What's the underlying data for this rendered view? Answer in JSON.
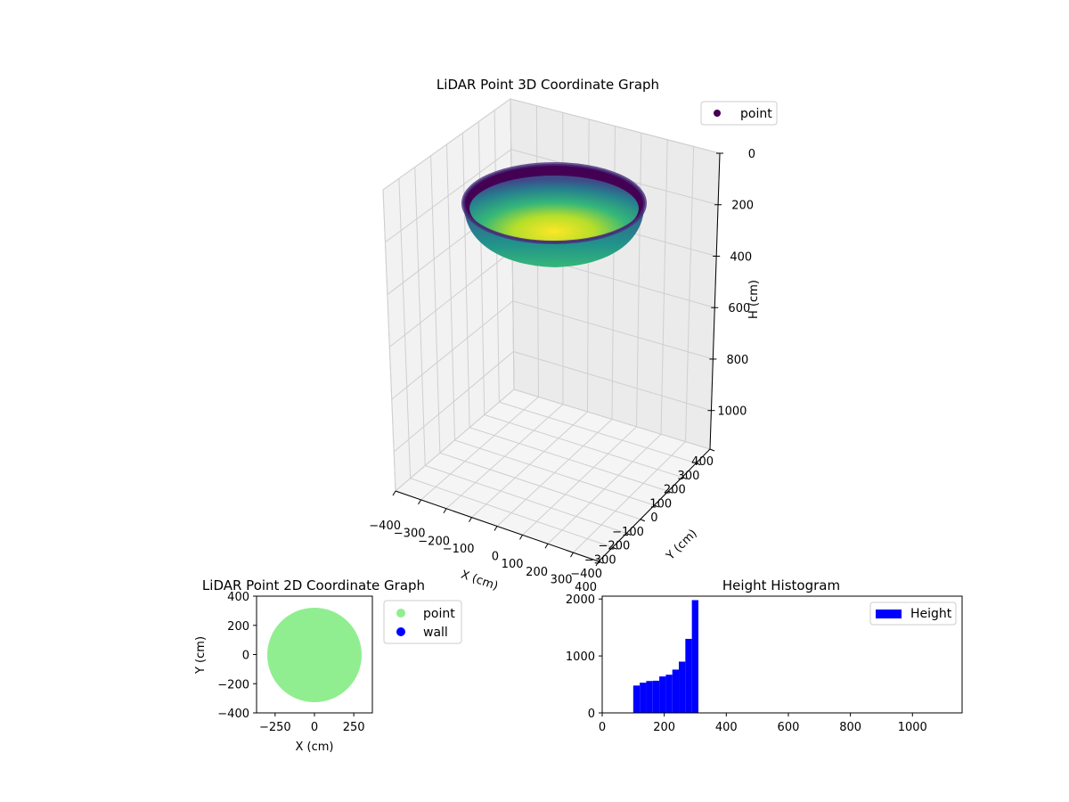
{
  "chart_data": [
    {
      "type": "scatter",
      "title": "LiDAR Point 3D Coordinate Graph",
      "xlabel": "X (cm)",
      "ylabel": "Y (cm)",
      "zlabel": "H (cm)",
      "xlim": [
        -400,
        400
      ],
      "ylim": [
        -400,
        400
      ],
      "zlim": [
        0,
        1150
      ],
      "z_inverted": true,
      "x_ticks": [
        "−400",
        "−300",
        "−200",
        "−100",
        "0",
        "100",
        "200",
        "300",
        "400"
      ],
      "y_ticks": [
        "−400",
        "−300",
        "−200",
        "−100",
        "0",
        "100",
        "200",
        "300",
        "400"
      ],
      "z_ticks": [
        "0",
        "200",
        "400",
        "600",
        "800",
        "1000"
      ],
      "legend": {
        "position": "top-right",
        "entries": [
          {
            "label": "point",
            "color": "#440154"
          }
        ]
      },
      "colormap": "viridis",
      "surface": {
        "shape": "bowl",
        "rim_radius": 310,
        "rim_height": 100,
        "bottom_height": 310,
        "color_by": "height"
      },
      "grid": true
    },
    {
      "type": "scatter",
      "title": "LiDAR Point 2D Coordinate Graph",
      "xlabel": "X (cm)",
      "ylabel": "Y (cm)",
      "xlim": [
        -400,
        400
      ],
      "ylim": [
        -400,
        400
      ],
      "x_ticks": [
        "−250",
        "0",
        "250"
      ],
      "y_ticks": [
        "−400",
        "−200",
        "0",
        "200",
        "400"
      ],
      "series": [
        {
          "name": "point",
          "color": "#90ee90",
          "shape": "disk",
          "center": [
            0,
            0
          ],
          "radius": 310
        },
        {
          "name": "wall",
          "color": "#0000ff",
          "values": []
        }
      ],
      "legend": {
        "position": "outside-right"
      },
      "grid": false
    },
    {
      "type": "bar",
      "title": "Height Histogram",
      "xlim": [
        0,
        1160
      ],
      "ylim": [
        0,
        2050
      ],
      "x_ticks": [
        "0",
        "200",
        "400",
        "600",
        "800",
        "1000"
      ],
      "y_ticks": [
        "0",
        "1000",
        "2000"
      ],
      "bin_width": 21,
      "bins": [
        {
          "start": 100,
          "count": 480
        },
        {
          "start": 121,
          "count": 530
        },
        {
          "start": 142,
          "count": 560
        },
        {
          "start": 163,
          "count": 565
        },
        {
          "start": 184,
          "count": 640
        },
        {
          "start": 205,
          "count": 670
        },
        {
          "start": 226,
          "count": 760
        },
        {
          "start": 247,
          "count": 900
        },
        {
          "start": 268,
          "count": 1300
        },
        {
          "start": 289,
          "count": 1980
        }
      ],
      "series": [
        {
          "name": "Height",
          "color": "#0000ff"
        }
      ],
      "legend": {
        "position": "top-right"
      },
      "grid": false
    }
  ]
}
